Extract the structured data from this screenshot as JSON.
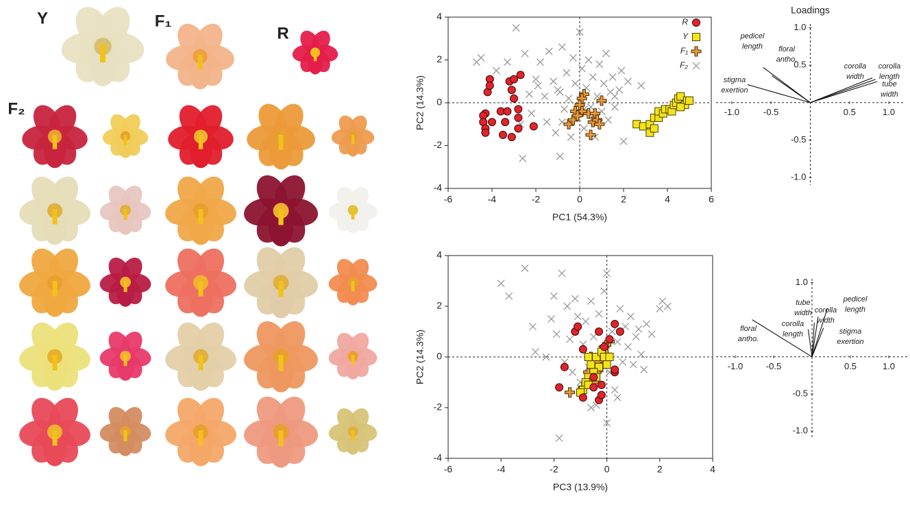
{
  "photo_labels": [
    "Y",
    "F₁",
    "R",
    "F₂"
  ],
  "chart_data": [
    {
      "type": "scatter",
      "xlabel": "PC1 (54.3%)",
      "ylabel": "PC2 (14.3%)",
      "xlim": [
        -6,
        6
      ],
      "ylim": [
        -4,
        4
      ],
      "xticks": [
        -6,
        -4,
        -2,
        0,
        2,
        4,
        6
      ],
      "yticks": [
        -4,
        -2,
        0,
        2,
        4
      ],
      "reference_lines": true,
      "legend": "upper right",
      "series": [
        {
          "name": "R",
          "marker": "circle",
          "color": "#e3232b",
          "x": [
            -4.2,
            -4.1,
            -4.1,
            -3.2,
            -3.0,
            -2.7,
            -3.1,
            -3.0,
            -4.3,
            -4.4,
            -4.4,
            -4.3,
            -4.3,
            -3.6,
            -3.3,
            -2.8,
            -3.5,
            -3.1,
            -2.8,
            -2.1,
            -4.0,
            -3.4,
            -2.8
          ],
          "values": [
            0.5,
            1.1,
            0.8,
            1.0,
            1.1,
            1.3,
            0.6,
            0.2,
            -0.5,
            -0.6,
            -0.9,
            -1.2,
            -1.4,
            -0.4,
            -0.4,
            -0.3,
            -1.5,
            -1.6,
            -1.2,
            -1.1,
            -0.9,
            -0.9,
            -0.7
          ]
        },
        {
          "name": "Y",
          "marker": "square",
          "color": "#f5e31a",
          "x": [
            2.6,
            2.9,
            3.2,
            3.2,
            3.4,
            3.4,
            3.6,
            3.6,
            3.8,
            3.9,
            4.1,
            4.2,
            4.3,
            4.4,
            4.5,
            4.6,
            4.8,
            4.9,
            5.0,
            4.6
          ],
          "values": [
            -1.0,
            -1.1,
            -1.0,
            -1.4,
            -1.2,
            -0.7,
            -0.7,
            -0.4,
            -0.5,
            -0.3,
            -0.3,
            -0.4,
            -0.1,
            0.0,
            0.2,
            0.3,
            -0.1,
            0.1,
            0.1,
            -0.2
          ]
        },
        {
          "name": "F₁",
          "marker": "plus",
          "color": "#e99a3c",
          "x": [
            0.2,
            0.1,
            0.0,
            -0.2,
            0.4,
            0.7,
            0.6,
            0.8,
            0.9,
            0.5,
            -0.5,
            -0.3,
            0.1,
            1.0,
            -0.1
          ],
          "values": [
            0.4,
            0.2,
            -0.1,
            -0.4,
            -0.5,
            -0.5,
            -0.9,
            -0.8,
            -1.0,
            -1.5,
            -1.0,
            -0.8,
            -0.4,
            0.1,
            -0.6
          ]
        },
        {
          "name": "F₂",
          "marker": "cross",
          "color": "#9a9a9a",
          "x": [
            -4.7,
            -4.5,
            -3.8,
            -3.3,
            -2.9,
            -2.6,
            -2.5,
            -2.3,
            -2.2,
            -2.0,
            -1.8,
            -1.6,
            -1.5,
            -1.4,
            -1.2,
            -1.1,
            -1.0,
            -0.9,
            -0.8,
            -0.7,
            -0.6,
            -0.5,
            -0.4,
            -0.3,
            -0.2,
            -0.1,
            0.0,
            0.1,
            0.2,
            0.3,
            0.4,
            0.5,
            0.6,
            0.7,
            0.8,
            0.9,
            1.0,
            1.1,
            1.2,
            1.3,
            1.4,
            1.5,
            1.6,
            1.8,
            2.0,
            2.2,
            2.8,
            -0.8,
            -1.9,
            0.2,
            1.6,
            -2.7,
            -0.9,
            0.6,
            1.9
          ],
          "values": [
            1.9,
            2.1,
            1.5,
            1.9,
            3.5,
            -2.6,
            2.3,
            0.4,
            -0.5,
            1.1,
            1.9,
            0.3,
            -0.9,
            2.4,
            1.0,
            -1.4,
            0.6,
            -2.5,
            2.6,
            -0.3,
            1.4,
            0.2,
            -1.6,
            2.1,
            0.9,
            -0.7,
            3.3,
            1.6,
            -1.2,
            0.7,
            2.0,
            -0.2,
            1.2,
            -1.6,
            0.3,
            1.8,
            -0.4,
            0.9,
            2.3,
            -0.8,
            0.5,
            1.2,
            -0.2,
            0.6,
            -1.8,
            1.0,
            0.8,
            -0.9,
            0.8,
            -0.3,
            0.3,
            -1.0,
            0.5,
            -0.6,
            1.5
          ]
        }
      ]
    },
    {
      "type": "loadings",
      "title": "Loadings",
      "xlim": [
        -1.2,
        1.2
      ],
      "ylim": [
        -1.1,
        1.05
      ],
      "xticks": [
        {
          "value": -1,
          "label": "-1.0"
        },
        {
          "value": -0.5,
          "label": "-0.5"
        },
        {
          "value": 0.5,
          "label": "0.5"
        },
        {
          "value": 1,
          "label": "1.0"
        }
      ],
      "yticks": [
        {
          "value": 1,
          "label": "1.0"
        },
        {
          "value": 0.5,
          "label": "0.5"
        },
        {
          "value": -0.5,
          "label": "-0.5"
        },
        {
          "value": -1,
          "label": "-1.0"
        }
      ],
      "vectors": [
        {
          "label": [
            "stigma",
            "exertion"
          ],
          "x": -0.8,
          "y": 0.24
        },
        {
          "label": [
            "pedicel",
            "length"
          ],
          "x": -0.6,
          "y": 0.47
        },
        {
          "label": [
            "floral",
            "antho."
          ],
          "x": -0.49,
          "y": 0.36
        },
        {
          "label": [
            "corolla",
            "width"
          ],
          "x": 0.79,
          "y": 0.33
        },
        {
          "label": [
            "corolla",
            "length"
          ],
          "x": 0.83,
          "y": 0.31
        },
        {
          "label": [
            "tube",
            "width"
          ],
          "x": 0.85,
          "y": 0.28
        }
      ]
    },
    {
      "type": "scatter",
      "xlabel": "PC3 (13.9%)",
      "ylabel": "PC2 (14.3%)",
      "xlim": [
        -6,
        4
      ],
      "ylim": [
        -4,
        4
      ],
      "xticks": [
        -6,
        -4,
        -2,
        0,
        2,
        4
      ],
      "yticks": [
        -4,
        -2,
        0,
        2,
        4
      ],
      "reference_lines": true,
      "series": [
        {
          "marker": "circle",
          "color": "#e3232b",
          "x": [
            -1.8,
            -1.6,
            -1.2,
            -1.1,
            -0.9,
            -0.3,
            0.3,
            0.5,
            0.1,
            -0.1,
            0.3,
            -0.9,
            -0.5,
            -0.3,
            -0.2,
            -0.2,
            -0.5,
            0.3
          ],
          "values": [
            -1.2,
            -0.4,
            1.0,
            1.2,
            0.3,
            1.0,
            1.3,
            1.0,
            0.7,
            0.4,
            -0.6,
            -1.6,
            -1.2,
            -1.7,
            -1.5,
            -1.1,
            -0.8,
            -0.5
          ]
        },
        {
          "marker": "square",
          "color": "#f5e31a",
          "x": [
            -0.7,
            -0.6,
            -0.4,
            -0.2,
            -0.1,
            -0.3,
            -0.5,
            -0.7,
            -0.8,
            -0.9,
            -0.7,
            -1.0,
            0.0,
            -0.4,
            0.1
          ],
          "values": [
            0.0,
            -0.3,
            0.0,
            0.2,
            0.0,
            -0.4,
            -0.6,
            -0.8,
            -1.0,
            -1.3,
            -1.1,
            -1.4,
            -0.3,
            -0.8,
            0.0
          ]
        },
        {
          "marker": "plus",
          "color": "#e99a3c",
          "x": [
            -1.4,
            -0.9,
            -0.7,
            -0.6,
            -0.4,
            -0.3,
            -0.1,
            0.0,
            -0.2,
            0.1,
            -0.5,
            -0.6
          ],
          "values": [
            -1.4,
            -1.2,
            -0.6,
            -0.9,
            -0.6,
            -0.2,
            0.4,
            0.1,
            -0.4,
            0.6,
            -1.0,
            0.0
          ]
        },
        {
          "marker": "cross",
          "color": "#9a9a9a",
          "x": [
            -4.0,
            -3.7,
            -3.1,
            -2.8,
            -2.7,
            -2.3,
            -2.1,
            -2.0,
            -1.9,
            -1.7,
            -1.6,
            -1.5,
            -1.4,
            -1.3,
            -1.2,
            -1.1,
            -1.0,
            -0.9,
            -0.8,
            -0.7,
            -0.6,
            -0.5,
            -0.4,
            -0.3,
            -0.2,
            -0.1,
            0.0,
            0.1,
            0.2,
            0.3,
            0.4,
            0.5,
            0.6,
            0.7,
            0.8,
            0.9,
            1.0,
            1.1,
            1.2,
            1.3,
            1.5,
            1.7,
            2.0,
            2.1,
            2.3,
            -1.8,
            0.0,
            -0.6,
            0.4,
            1.4
          ],
          "values": [
            2.9,
            2.4,
            3.5,
            1.2,
            0.2,
            0.0,
            1.5,
            2.4,
            0.9,
            3.3,
            -0.2,
            2.0,
            0.7,
            -0.6,
            2.3,
            1.6,
            -1.0,
            0.5,
            1.4,
            -0.4,
            2.2,
            0.8,
            -1.9,
            1.7,
            0.3,
            2.6,
            3.3,
            -0.6,
            1.0,
            -1.3,
            0.6,
            1.9,
            -0.2,
            1.2,
            0.4,
            1.6,
            -0.3,
            0.8,
            1.1,
            0.1,
            1.3,
            0.9,
            1.9,
            2.2,
            2.0,
            -3.2,
            -2.6,
            -2.0,
            -1.6,
            -0.5
          ]
        }
      ]
    },
    {
      "type": "loadings",
      "xlim": [
        -1.25,
        1.25
      ],
      "ylim": [
        -1.1,
        1.05
      ],
      "xticks": [
        {
          "value": -1,
          "label": "-1.0"
        },
        {
          "value": -0.5,
          "label": "-0.5"
        },
        {
          "value": 0.5,
          "label": "0.5"
        },
        {
          "value": 1,
          "label": "1.0"
        }
      ],
      "yticks": [
        {
          "value": 1,
          "label": "1.0"
        },
        {
          "value": -0.5,
          "label": "-0.5"
        },
        {
          "value": -1,
          "label": "-1.0"
        }
      ],
      "vectors": [
        {
          "label": [
            "floral",
            "antho."
          ],
          "x": -0.78,
          "y": 0.5
        },
        {
          "label": [
            "corolla",
            "length"
          ],
          "x": -0.05,
          "y": 0.37
        },
        {
          "label": [
            "tube",
            "width"
          ],
          "x": 0.03,
          "y": 0.46
        },
        {
          "label": [
            "corolla",
            "width"
          ],
          "x": 0.08,
          "y": 0.54
        },
        {
          "label": [
            "pedicel",
            "length"
          ],
          "x": 0.2,
          "y": 0.65
        },
        {
          "label": [
            "stigma",
            "exertion"
          ],
          "x": 0.15,
          "y": 0.39
        }
      ]
    }
  ]
}
